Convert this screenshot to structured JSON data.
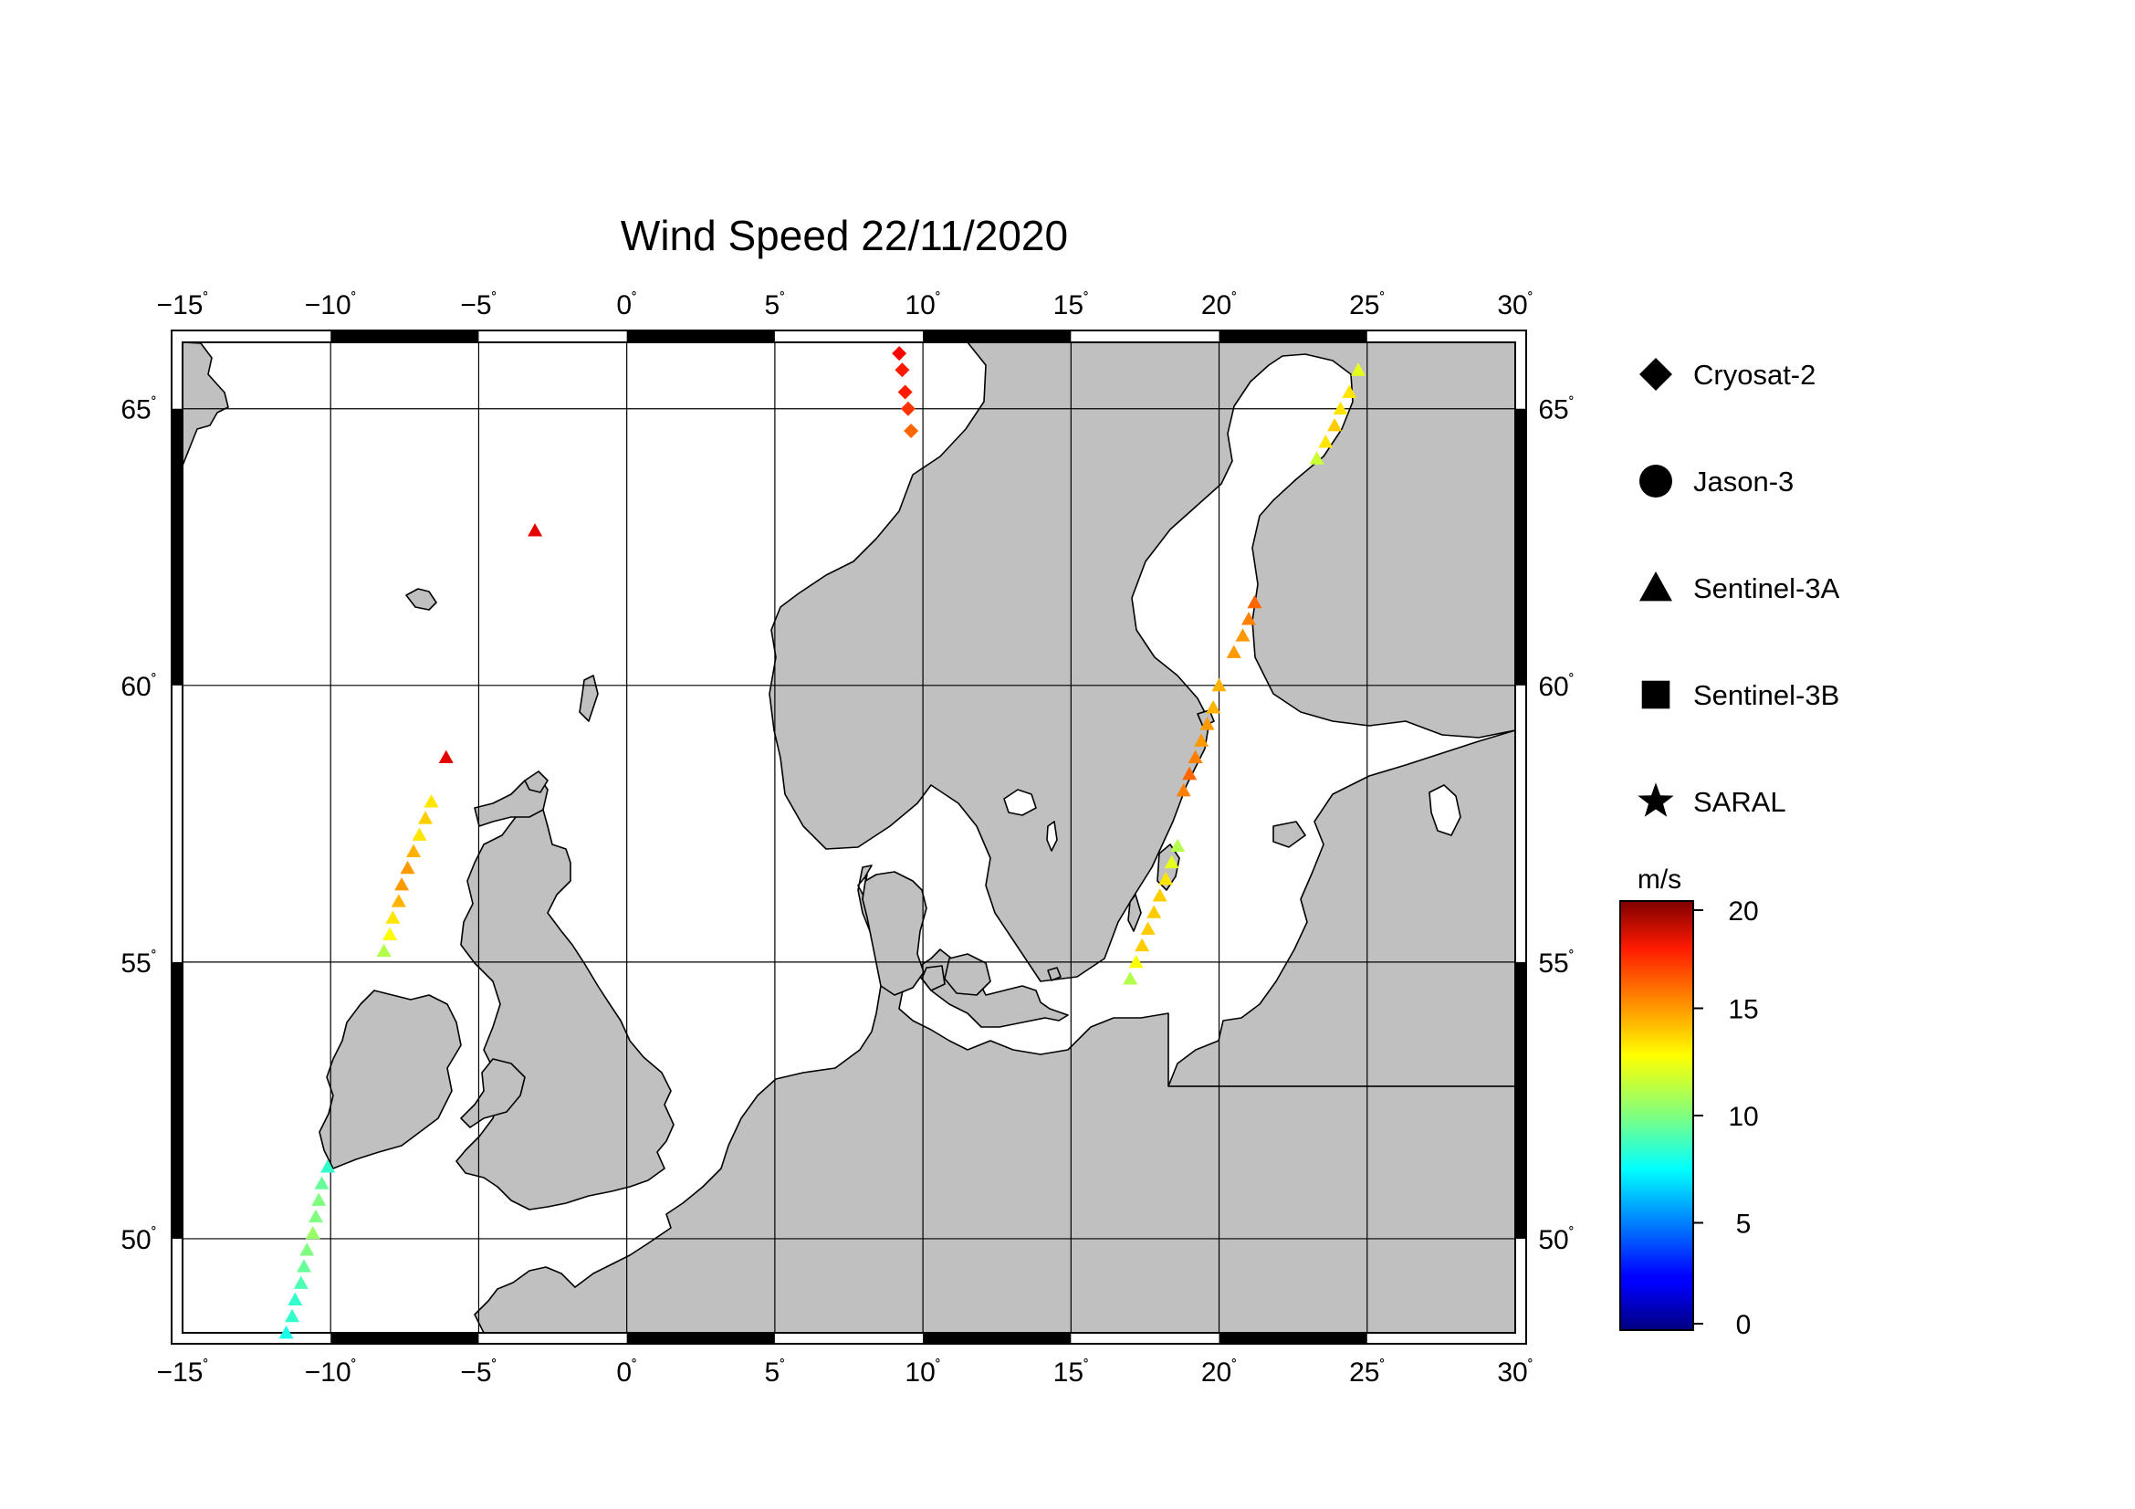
{
  "title": "Wind Speed 22/11/2020",
  "map": {
    "lon_range": [
      -15,
      30
    ],
    "lat_range": [
      48.3,
      66.2
    ],
    "lon_ticks": [
      {
        "value": -15,
        "label": "−15"
      },
      {
        "value": -10,
        "label": "−10"
      },
      {
        "value": -5,
        "label": "−5"
      },
      {
        "value": 0,
        "label": "0"
      },
      {
        "value": 5,
        "label": "5"
      },
      {
        "value": 10,
        "label": "10"
      },
      {
        "value": 15,
        "label": "15"
      },
      {
        "value": 20,
        "label": "20"
      },
      {
        "value": 25,
        "label": "25"
      },
      {
        "value": 30,
        "label": "30"
      }
    ],
    "lat_ticks": [
      {
        "value": 50,
        "label": "50"
      },
      {
        "value": 55,
        "label": "55"
      },
      {
        "value": 60,
        "label": "60"
      },
      {
        "value": 65,
        "label": "65"
      }
    ],
    "degree_symbol": "˚",
    "gridlines": true,
    "land_color": "#c0c0c0",
    "sea_color": "#ffffff"
  },
  "legend": {
    "items": [
      {
        "label": "Cryosat-2",
        "symbol": "diamond"
      },
      {
        "label": "Jason-3",
        "symbol": "circle"
      },
      {
        "label": "Sentinel-3A",
        "symbol": "triangle"
      },
      {
        "label": "Sentinel-3B",
        "symbol": "square"
      },
      {
        "label": "SARAL",
        "symbol": "star"
      }
    ]
  },
  "colorbar": {
    "unit": "m/s",
    "min": 0,
    "max": 20,
    "ticks": [
      {
        "value": 0,
        "label": "0"
      },
      {
        "value": 5,
        "label": "5"
      },
      {
        "value": 10,
        "label": "10"
      },
      {
        "value": 15,
        "label": "15"
      },
      {
        "value": 20,
        "label": "20"
      }
    ],
    "colormap": "jet"
  },
  "chart_data": {
    "type": "scatter",
    "title": "Wind Speed 22/11/2020",
    "xlabel": "",
    "ylabel": "",
    "xlim": [
      -15,
      30
    ],
    "ylim": [
      48.3,
      66.2
    ],
    "series": [
      {
        "name": "Cryosat-2",
        "symbol": "diamond",
        "points": [
          {
            "lon": 9.2,
            "lat": 66.0,
            "speed": 17.5
          },
          {
            "lon": 9.3,
            "lat": 65.7,
            "speed": 17.0
          },
          {
            "lon": 9.4,
            "lat": 65.3,
            "speed": 17.0
          },
          {
            "lon": 9.5,
            "lat": 65.0,
            "speed": 16.5
          },
          {
            "lon": 9.6,
            "lat": 64.6,
            "speed": 15.5
          }
        ]
      },
      {
        "name": "Sentinel-3A",
        "symbol": "triangle",
        "points": [
          {
            "lon": -3.1,
            "lat": 62.8,
            "speed": 18.0
          },
          {
            "lon": -6.1,
            "lat": 58.7,
            "speed": 18.0
          },
          {
            "lon": -6.6,
            "lat": 57.9,
            "speed": 13.0
          },
          {
            "lon": -6.8,
            "lat": 57.6,
            "speed": 13.5
          },
          {
            "lon": -7.0,
            "lat": 57.3,
            "speed": 13.0
          },
          {
            "lon": -7.2,
            "lat": 57.0,
            "speed": 14.0
          },
          {
            "lon": -7.4,
            "lat": 56.7,
            "speed": 14.5
          },
          {
            "lon": -7.6,
            "lat": 56.4,
            "speed": 14.5
          },
          {
            "lon": -7.7,
            "lat": 56.1,
            "speed": 14.0
          },
          {
            "lon": -7.9,
            "lat": 55.8,
            "speed": 13.0
          },
          {
            "lon": -8.0,
            "lat": 55.5,
            "speed": 12.5
          },
          {
            "lon": -8.2,
            "lat": 55.2,
            "speed": 11.0
          },
          {
            "lon": -10.1,
            "lat": 51.3,
            "speed": 8.5
          },
          {
            "lon": -10.3,
            "lat": 51.0,
            "speed": 9.5
          },
          {
            "lon": -10.4,
            "lat": 50.7,
            "speed": 10.0
          },
          {
            "lon": -10.5,
            "lat": 50.4,
            "speed": 10.0
          },
          {
            "lon": -10.6,
            "lat": 50.1,
            "speed": 10.5
          },
          {
            "lon": -10.8,
            "lat": 49.8,
            "speed": 10.0
          },
          {
            "lon": -10.9,
            "lat": 49.5,
            "speed": 9.5
          },
          {
            "lon": -11.0,
            "lat": 49.2,
            "speed": 9.0
          },
          {
            "lon": -11.2,
            "lat": 48.9,
            "speed": 8.5
          },
          {
            "lon": -11.3,
            "lat": 48.6,
            "speed": 8.5
          },
          {
            "lon": -11.5,
            "lat": 48.3,
            "speed": 8.0
          },
          {
            "lon": 24.7,
            "lat": 65.7,
            "speed": 12.0
          },
          {
            "lon": 24.4,
            "lat": 65.3,
            "speed": 13.0
          },
          {
            "lon": 24.1,
            "lat": 65.0,
            "speed": 13.0
          },
          {
            "lon": 23.9,
            "lat": 64.7,
            "speed": 13.5
          },
          {
            "lon": 23.6,
            "lat": 64.4,
            "speed": 13.0
          },
          {
            "lon": 23.3,
            "lat": 64.1,
            "speed": 11.5
          },
          {
            "lon": 21.2,
            "lat": 61.5,
            "speed": 15.5
          },
          {
            "lon": 21.0,
            "lat": 61.2,
            "speed": 15.0
          },
          {
            "lon": 20.8,
            "lat": 60.9,
            "speed": 14.5
          },
          {
            "lon": 20.5,
            "lat": 60.6,
            "speed": 14.5
          },
          {
            "lon": 20.0,
            "lat": 60.0,
            "speed": 14.0
          },
          {
            "lon": 19.8,
            "lat": 59.6,
            "speed": 14.0
          },
          {
            "lon": 19.6,
            "lat": 59.3,
            "speed": 14.5
          },
          {
            "lon": 19.4,
            "lat": 59.0,
            "speed": 14.5
          },
          {
            "lon": 19.2,
            "lat": 58.7,
            "speed": 15.0
          },
          {
            "lon": 19.0,
            "lat": 58.4,
            "speed": 15.5
          },
          {
            "lon": 18.8,
            "lat": 58.1,
            "speed": 15.0
          },
          {
            "lon": 18.6,
            "lat": 57.1,
            "speed": 11.0
          },
          {
            "lon": 18.4,
            "lat": 56.8,
            "speed": 12.0
          },
          {
            "lon": 18.2,
            "lat": 56.5,
            "speed": 13.0
          },
          {
            "lon": 18.0,
            "lat": 56.2,
            "speed": 13.5
          },
          {
            "lon": 17.8,
            "lat": 55.9,
            "speed": 13.5
          },
          {
            "lon": 17.6,
            "lat": 55.6,
            "speed": 13.5
          },
          {
            "lon": 17.4,
            "lat": 55.3,
            "speed": 13.5
          },
          {
            "lon": 17.2,
            "lat": 55.0,
            "speed": 12.5
          },
          {
            "lon": 17.0,
            "lat": 54.7,
            "speed": 11.0
          }
        ]
      }
    ]
  }
}
